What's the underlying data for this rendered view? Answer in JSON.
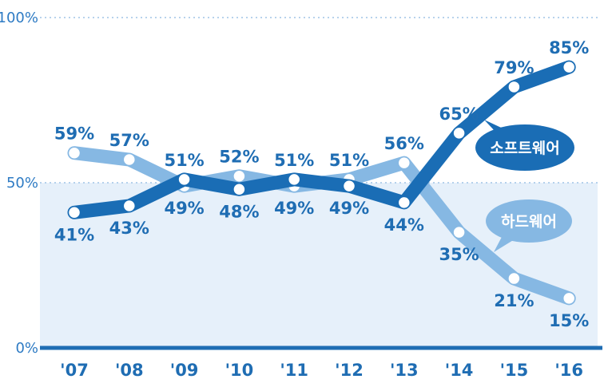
{
  "chart_data": {
    "type": "line",
    "categories": [
      "'07",
      "'08",
      "'09",
      "'10",
      "'11",
      "'12",
      "'13",
      "'14",
      "'15",
      "'16"
    ],
    "series": [
      {
        "name": "소프트웨어",
        "values": [
          41,
          43,
          51,
          48,
          51,
          49,
          44,
          65,
          79,
          85
        ],
        "labels": [
          "41%",
          "43%",
          "51%",
          "48%",
          "51%",
          "49%",
          "44%",
          "65%",
          "79%",
          "85%"
        ],
        "color": "#1a6db5"
      },
      {
        "name": "하드웨어",
        "values": [
          59,
          57,
          49,
          52,
          49,
          51,
          56,
          35,
          21,
          15
        ],
        "labels": [
          "59%",
          "57%",
          "49%",
          "52%",
          "49%",
          "51%",
          "56%",
          "35%",
          "21%",
          "15%"
        ],
        "color": "#86b8e3"
      }
    ],
    "yticks": [
      "100%",
      "50%",
      "0%"
    ],
    "ylim": [
      0,
      100
    ],
    "grid": true,
    "shaded_band": [
      0,
      50
    ],
    "shaded_color": "#e6f0fa"
  }
}
